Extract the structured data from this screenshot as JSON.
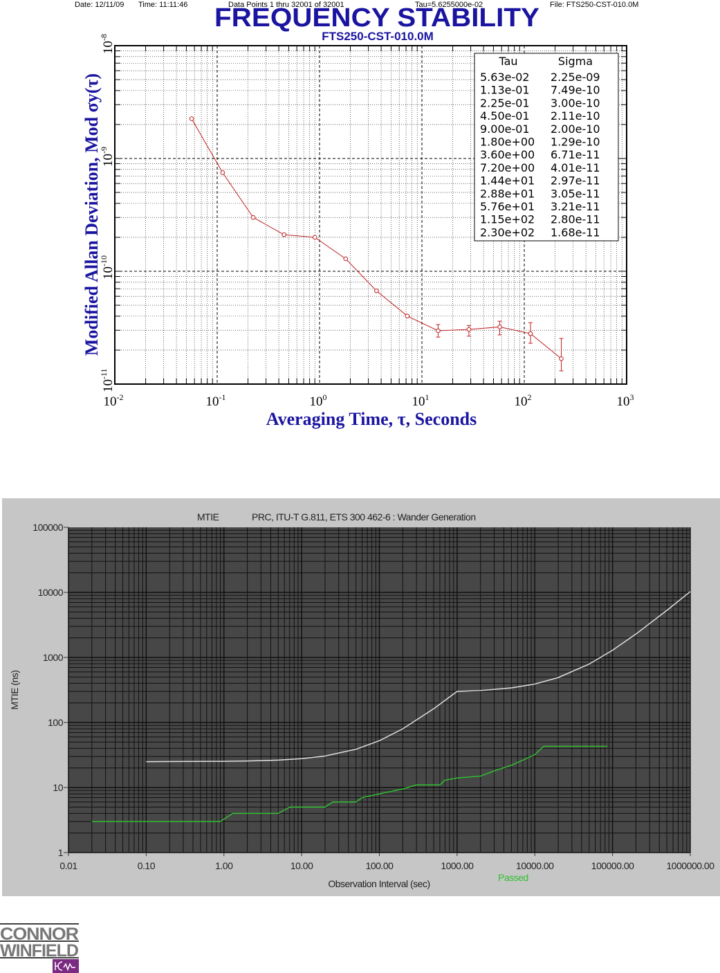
{
  "chart_data": [
    {
      "type": "line",
      "header": {
        "date": "Date: 12/11/09",
        "time": "Time: 11:11:46",
        "points": "Data Points 1 thru 32001 of 32001",
        "tau": "Tau=5.6255000e-02",
        "file": "File: FTS250-CST-010.0M"
      },
      "title": "FREQUENCY STABILITY",
      "subtitle": "FTS250-CST-010.0M",
      "xlabel": "Averaging  Time,  τ,  Seconds",
      "ylabel": "Modified Allan Deviation, Mod σy(τ)",
      "xscale": "log",
      "yscale": "log",
      "xlim": [
        0.01,
        1000
      ],
      "ylim": [
        1e-11,
        1e-08
      ],
      "x_ticks": [
        {
          "base": "10",
          "exp": "-2"
        },
        {
          "base": "10",
          "exp": "-1"
        },
        {
          "base": "10",
          "exp": "0"
        },
        {
          "base": "10",
          "exp": "1"
        },
        {
          "base": "10",
          "exp": "2"
        },
        {
          "base": "10",
          "exp": "3"
        }
      ],
      "y_ticks": [
        {
          "base": "10",
          "exp": "-8"
        },
        {
          "base": "10",
          "exp": "-9"
        },
        {
          "base": "10",
          "exp": "-10"
        },
        {
          "base": "10",
          "exp": "-11"
        }
      ],
      "grid": true,
      "color": "#c02020",
      "table": {
        "headers": [
          "Tau",
          "Sigma"
        ],
        "rows": [
          [
            "5.63e-02",
            "2.25e-09"
          ],
          [
            "1.13e-01",
            "7.49e-10"
          ],
          [
            "2.25e-01",
            "3.00e-10"
          ],
          [
            "4.50e-01",
            "2.11e-10"
          ],
          [
            "9.00e-01",
            "2.00e-10"
          ],
          [
            "1.80e+00",
            "1.29e-10"
          ],
          [
            "3.60e+00",
            "6.71e-11"
          ],
          [
            "7.20e+00",
            "4.01e-11"
          ],
          [
            "1.44e+01",
            "2.97e-11"
          ],
          [
            "2.88e+01",
            "3.05e-11"
          ],
          [
            "5.76e+01",
            "3.21e-11"
          ],
          [
            "1.15e+02",
            "2.80e-11"
          ],
          [
            "2.30e+02",
            "1.68e-11"
          ]
        ]
      },
      "x": [
        0.0563,
        0.113,
        0.225,
        0.45,
        0.9,
        1.8,
        3.6,
        7.2,
        14.4,
        28.8,
        57.6,
        115,
        230
      ],
      "y": [
        2.25e-09,
        7.49e-10,
        3e-10,
        2.11e-10,
        2e-10,
        1.29e-10,
        6.71e-11,
        4.01e-11,
        2.97e-11,
        3.05e-11,
        3.21e-11,
        2.8e-11,
        1.68e-11
      ],
      "error_bars": [
        null,
        null,
        null,
        null,
        null,
        null,
        null,
        null,
        [
          2.61e-11,
          3.37e-11
        ],
        [
          2.66e-11,
          3.31e-11
        ],
        [
          2.73e-11,
          3.61e-11
        ],
        [
          2.3e-11,
          3.5e-11
        ],
        [
          1.31e-11,
          2.54e-11
        ]
      ]
    },
    {
      "type": "line",
      "title": "MTIE",
      "subtitle": "PRC, ITU-T G.811, ETS 300 462-6 : Wander Generation",
      "xlabel": "Observation Interval (sec)",
      "ylabel": "MTIE (ns)",
      "xscale": "log",
      "yscale": "log",
      "xlim": [
        0.01,
        1000000
      ],
      "ylim": [
        1,
        100000
      ],
      "x_tick_labels": [
        "0.01",
        "0.10",
        "1.00",
        "10.00",
        "100.00",
        "1000.00",
        "10000.00",
        "100000.00",
        "1000000.00"
      ],
      "y_tick_labels": [
        "100000",
        "10000",
        "1000",
        "100",
        "10",
        "1"
      ],
      "grid": true,
      "legend_text": "Passed",
      "series": [
        {
          "color": "#e0e0e0",
          "x": [
            0.1,
            1,
            2,
            5,
            10,
            20,
            50,
            100,
            200,
            500,
            1000,
            2000,
            5000,
            10000,
            20000,
            50000,
            100000,
            200000,
            500000,
            1000000
          ],
          "y": [
            25,
            25.3,
            25.6,
            26.4,
            27.8,
            30.5,
            38.8,
            52.5,
            80,
            162.5,
            300,
            310,
            340,
            390,
            490,
            790,
            1290,
            2290,
            5290,
            10290
          ]
        },
        {
          "name": "Passed",
          "color": "#2fbf2f",
          "x": [
            0.02,
            0.9,
            1.3,
            5,
            7,
            20,
            25,
            50,
            60,
            100,
            200,
            300,
            600,
            700,
            1000,
            2000,
            3000,
            5000,
            10000,
            13000,
            85000
          ],
          "y": [
            3,
            3,
            4,
            4,
            5,
            5,
            6,
            6,
            7,
            8,
            9.5,
            11,
            11,
            13,
            14,
            15,
            18,
            22,
            32,
            43,
            43
          ]
        }
      ]
    }
  ],
  "logo": {
    "line1": "CONNOR",
    "line2": "WINFIELD",
    "mark": "CW"
  }
}
